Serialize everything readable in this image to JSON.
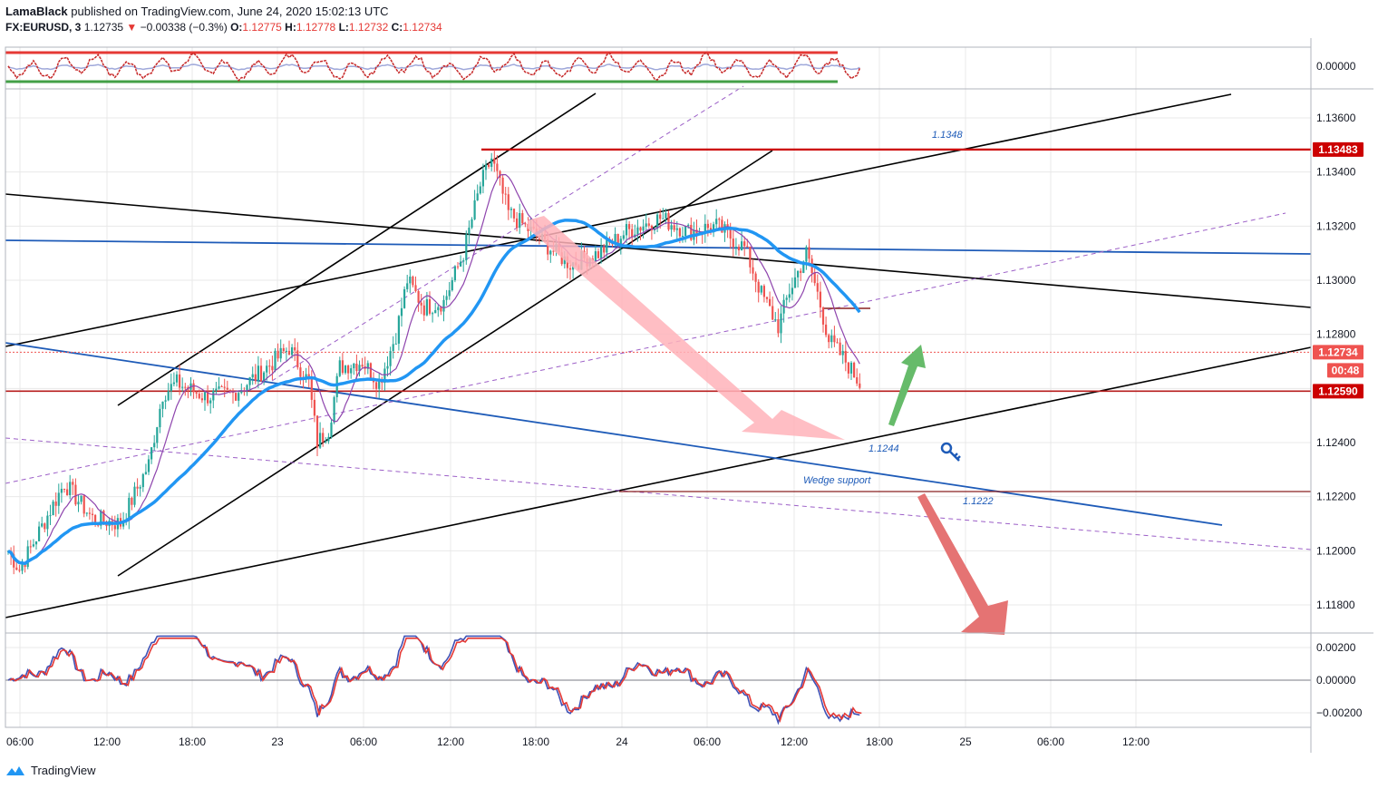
{
  "header": {
    "author": "LamaBlack",
    "published_text": "published on TradingView.com, June 24, 2020 15:02:13 UTC",
    "symbol": "FX:EURUSD, 3",
    "last": "1.12735",
    "change_arrow": "▼",
    "change": "−0.00338 (−0.3%)",
    "o_label": "O:",
    "o": "1.12775",
    "h_label": "H:",
    "h": "1.12778",
    "l_label": "L:",
    "l": "1.12732",
    "c_label": "C:",
    "c": "1.12734"
  },
  "footer": {
    "brand": "TradingView",
    "icon": "tradingview-logo-icon"
  },
  "colors": {
    "bg": "#ffffff",
    "grid": "#e8e8e8",
    "axis_text": "#131722",
    "up_candle": "#26a69a",
    "down_candle": "#ef5350",
    "ema": "#2196f3",
    "sma": "#8e44ad",
    "red_level": "#cc0000",
    "trend_black": "#000000",
    "trend_blue": "#1e5bb8",
    "dashed": "#9c5fc7",
    "pink_arrow": "#ffb3ba",
    "red_arrow": "#e57373",
    "green_arrow": "#66bb6a"
  },
  "chart_data": [
    {
      "type": "candlestick",
      "title": "",
      "price_axis_ticks": [
        "1.13600",
        "1.13400",
        "1.13200",
        "1.13000",
        "1.12800",
        "1.12600",
        "1.12400",
        "1.12200",
        "1.12000",
        "1.11800"
      ],
      "ylim": [
        1.1172,
        1.1386
      ],
      "time_axis_ticks": [
        "06:00",
        "12:00",
        "18:00",
        "23",
        "06:00",
        "12:00",
        "18:00",
        "24",
        "06:00",
        "12:00",
        "18:00",
        "25",
        "06:00",
        "12:00"
      ],
      "price_path": [
        [
          0,
          1.12
        ],
        [
          4,
          1.1193
        ],
        [
          10,
          1.1205
        ],
        [
          20,
          1.1225
        ],
        [
          30,
          1.1212
        ],
        [
          40,
          1.121
        ],
        [
          50,
          1.1232
        ],
        [
          55,
          1.1258
        ],
        [
          60,
          1.1262
        ],
        [
          70,
          1.1257
        ],
        [
          80,
          1.1258
        ],
        [
          90,
          1.1266
        ],
        [
          100,
          1.1275
        ],
        [
          107,
          1.1262
        ],
        [
          110,
          1.124
        ],
        [
          114,
          1.1245
        ],
        [
          118,
          1.1268
        ],
        [
          126,
          1.127
        ],
        [
          132,
          1.1262
        ],
        [
          138,
          1.128
        ],
        [
          142,
          1.13
        ],
        [
          148,
          1.129
        ],
        [
          155,
          1.1292
        ],
        [
          162,
          1.131
        ],
        [
          168,
          1.1335
        ],
        [
          172,
          1.1345
        ],
        [
          178,
          1.1325
        ],
        [
          186,
          1.1318
        ],
        [
          195,
          1.131
        ],
        [
          200,
          1.1306
        ],
        [
          210,
          1.131
        ],
        [
          220,
          1.1318
        ],
        [
          232,
          1.1323
        ],
        [
          242,
          1.1318
        ],
        [
          252,
          1.132
        ],
        [
          262,
          1.1312
        ],
        [
          268,
          1.1295
        ],
        [
          274,
          1.1283
        ],
        [
          278,
          1.1296
        ],
        [
          284,
          1.131
        ],
        [
          288,
          1.1295
        ],
        [
          292,
          1.1278
        ],
        [
          298,
          1.127
        ],
        [
          303,
          1.1262
        ]
      ],
      "labels": [
        {
          "text": "1.1348",
          "color": "#1e5bb8"
        },
        {
          "text": "1.1244",
          "color": "#1e5bb8"
        },
        {
          "text": "Wedge support",
          "color": "#1e5bb8"
        },
        {
          "text": "1.1222",
          "color": "#1e5bb8"
        }
      ],
      "price_badges": [
        {
          "text": "1.13483",
          "bg": "#cc0000",
          "fg": "#ffffff"
        },
        {
          "text": "1.12734",
          "bg": "#ef5350",
          "fg": "#ffffff"
        },
        {
          "text": "00:48",
          "bg": "#ef5350",
          "fg": "#ffffff"
        },
        {
          "text": "1.12590",
          "bg": "#cc0000",
          "fg": "#ffffff"
        }
      ]
    },
    {
      "type": "line",
      "title": "",
      "y_ticks": [
        "0.00000"
      ]
    },
    {
      "type": "line",
      "title": "",
      "y_ticks": [
        "0.00200",
        "0.00000",
        "−0.00200"
      ],
      "ylim": [
        -0.0029,
        0.0029
      ]
    }
  ]
}
